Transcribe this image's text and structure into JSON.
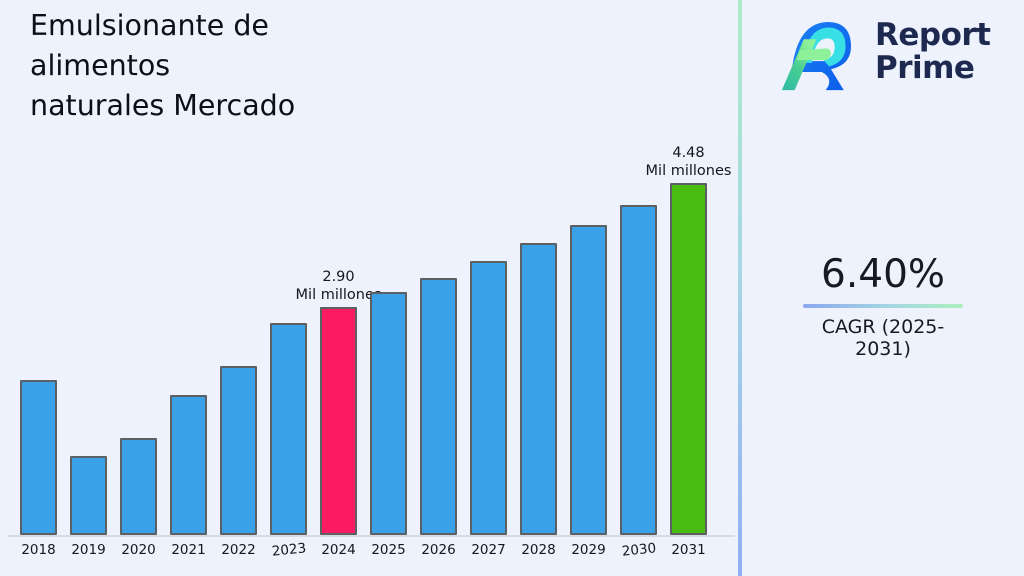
{
  "title": "Emulsionante de\nalimentos\nnaturales Mercado",
  "logo": {
    "brand": "Report Prime",
    "line1": "Report",
    "line2": "Prime",
    "navy": "#1e2950",
    "blue": "#0f6ef2",
    "cyan": "#38e0e6",
    "green_light": "#8ef098",
    "green_teal": "#2eb9a6"
  },
  "cagr": {
    "value": "6.40%",
    "label": "CAGR (2025-2031)"
  },
  "chart_data": {
    "type": "bar",
    "title": "",
    "xlabel": "",
    "ylabel": "",
    "unit": "Mil millones",
    "categories": [
      "2018",
      "2019",
      "2020",
      "2021",
      "2022",
      "2023",
      "2024",
      "2025",
      "2026",
      "2027",
      "2028",
      "2029",
      "2030",
      "2031"
    ],
    "values": [
      1.97,
      1.01,
      1.24,
      1.78,
      2.15,
      2.7,
      2.9,
      3.09,
      3.28,
      3.49,
      3.72,
      3.95,
      4.21,
      4.48
    ],
    "ylim": [
      0,
      5
    ],
    "grid": false,
    "legend": "none",
    "bar_colors": {
      "default": "#38a1e8",
      "2024": "#fb1b63",
      "2031": "#49bb11"
    },
    "annotations": {
      "2024": {
        "value": "2.90",
        "unit": "Mil millones"
      },
      "2031": {
        "value": "4.48",
        "unit": "Mil millones"
      }
    }
  }
}
